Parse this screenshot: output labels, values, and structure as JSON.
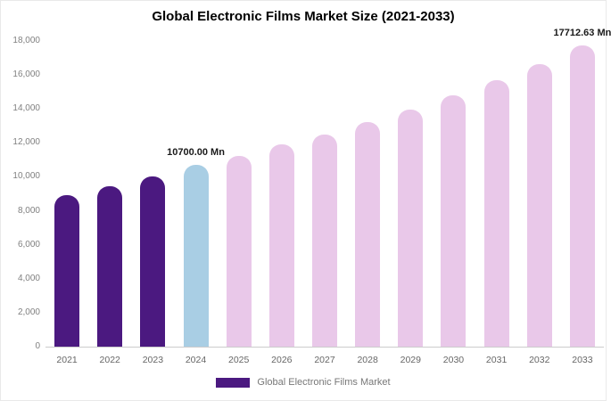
{
  "legend": {
    "label": "Global Electronic Films Market",
    "color": "#4b1980"
  },
  "colors": {
    "historical_bar": "#4b1980",
    "current_year_bar": "#a9cee4",
    "forecast_bar": "#e9c8e9",
    "axis_line": "#cccccc",
    "tick_text": "#808080"
  },
  "chart_data": {
    "type": "bar",
    "title": "Global Electronic Films Market Size (2021-2033)",
    "xlabel": "",
    "ylabel": "",
    "ylim": [
      0,
      18000
    ],
    "ytick_step": 2000,
    "ytick_labels": [
      "0",
      "2,000",
      "4,000",
      "6,000",
      "8,000",
      "10,000",
      "12,000",
      "14,000",
      "16,000",
      "18,000"
    ],
    "grid": false,
    "legend_position": "bottom",
    "categories": [
      "2021",
      "2022",
      "2023",
      "2024",
      "2025",
      "2026",
      "2027",
      "2028",
      "2029",
      "2030",
      "2031",
      "2032",
      "2033"
    ],
    "values": [
      8900,
      9450,
      10000,
      10700,
      11250,
      11900,
      12500,
      13250,
      13950,
      14800,
      15700,
      16650,
      17712.63
    ],
    "bar_colors": [
      "#4b1980",
      "#4b1980",
      "#4b1980",
      "#a9cee4",
      "#e9c8e9",
      "#e9c8e9",
      "#e9c8e9",
      "#e9c8e9",
      "#e9c8e9",
      "#e9c8e9",
      "#e9c8e9",
      "#e9c8e9",
      "#e9c8e9"
    ],
    "annotations": [
      {
        "category": "2024",
        "text": "10700.00 Mn"
      },
      {
        "category": "2033",
        "text": "17712.63 Mn"
      }
    ]
  }
}
